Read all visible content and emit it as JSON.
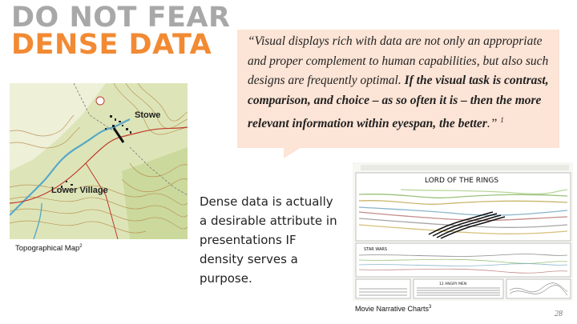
{
  "slide": {
    "title_line1": "DO NOT FEAR",
    "title_line2": "DENSE DATA",
    "quote": {
      "part1": "“Visual displays rich with data are not only an appropriate and proper complement to human capabilities, but also such designs are frequently optimal. ",
      "bold": "If the visual task is contrast, comparison, and choice – as so often it is – then the more relevant information within eyespan, the better",
      "end": ".” ",
      "footnote": "1"
    },
    "body_text": "Dense data is actually a desirable attribute in presentations IF density serves a purpose.",
    "map_caption": "Topographical Map",
    "map_caption_footnote": "2",
    "map_labels": {
      "town": "Stowe",
      "village": "Lower Village"
    },
    "chart_caption": "Movie Narrative Charts",
    "chart_caption_footnote": "3",
    "chart_titles": {
      "main": "LORD OF THE RINGS",
      "second": "STAR WARS",
      "third": "12 ANGRY MEN"
    },
    "slide_number": "28"
  },
  "colors": {
    "title_gray": "#a8a8a8",
    "title_orange": "#f28a33",
    "quote_bg": "#fce4d6"
  }
}
